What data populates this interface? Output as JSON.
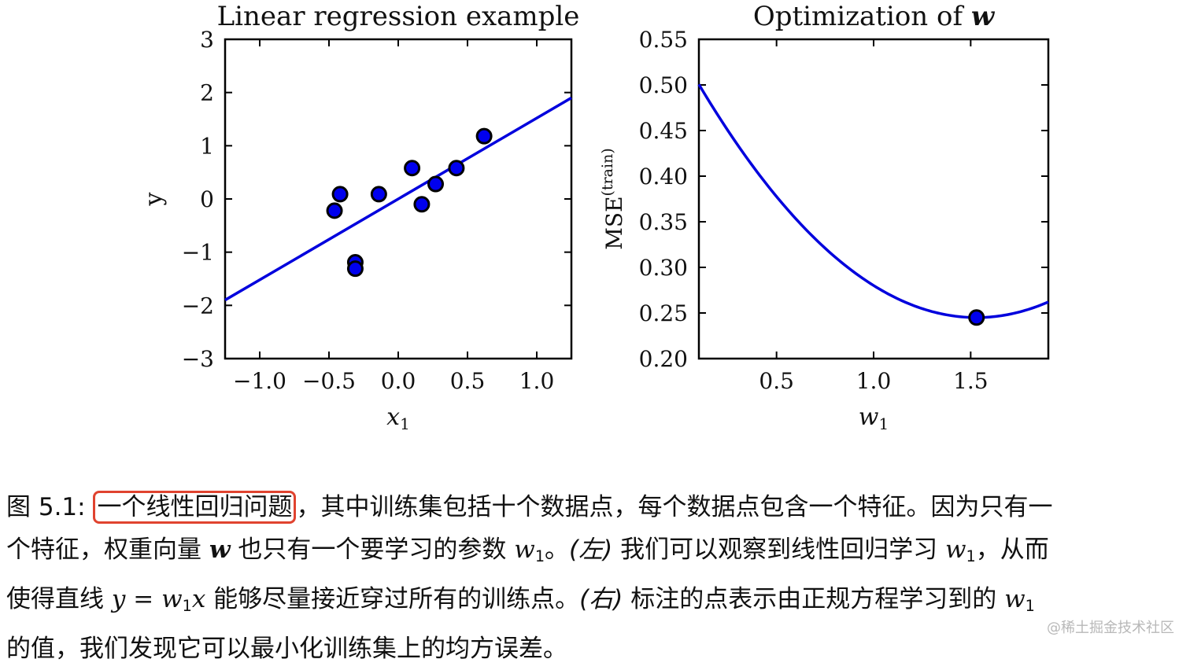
{
  "chart_data": [
    {
      "type": "scatter",
      "title": "Linear regression example",
      "xlabel": "x",
      "xlabel_sub": "1",
      "ylabel": "y",
      "xlim": [
        -1.25,
        1.25
      ],
      "ylim": [
        -3,
        3
      ],
      "xticks": [
        -1.0,
        -0.5,
        0.0,
        0.5,
        1.0
      ],
      "xtick_labels": [
        "−1.0",
        "−0.5",
        "0.0",
        "0.5",
        "1.0"
      ],
      "yticks": [
        -3,
        -2,
        -1,
        0,
        1,
        2,
        3
      ],
      "ytick_labels": [
        "−3",
        "−2",
        "−1",
        "0",
        "1",
        "2",
        "3"
      ],
      "points": [
        {
          "x": -0.46,
          "y": -0.22
        },
        {
          "x": -0.42,
          "y": 0.09
        },
        {
          "x": -0.31,
          "y": -1.19
        },
        {
          "x": -0.31,
          "y": -1.31
        },
        {
          "x": -0.14,
          "y": 0.09
        },
        {
          "x": 0.1,
          "y": 0.58
        },
        {
          "x": 0.17,
          "y": -0.1
        },
        {
          "x": 0.27,
          "y": 0.28
        },
        {
          "x": 0.42,
          "y": 0.58
        },
        {
          "x": 0.62,
          "y": 1.18
        }
      ],
      "fit_line": {
        "x": [
          -1.25,
          1.25
        ],
        "y": [
          -1.9,
          1.9
        ]
      },
      "point_color": "#0000ee",
      "line_color": "#0000dd"
    },
    {
      "type": "line",
      "title": "Optimization of ",
      "title_symbol": "w",
      "xlabel": "w",
      "xlabel_sub": "1",
      "ylabel": "MSE",
      "ylabel_sup": "(train)",
      "xlim": [
        0.1,
        1.9
      ],
      "ylim": [
        0.2,
        0.55
      ],
      "xticks": [
        0.5,
        1.0,
        1.5
      ],
      "xtick_labels": [
        "0.5",
        "1.0",
        "1.5"
      ],
      "yticks": [
        0.2,
        0.25,
        0.3,
        0.35,
        0.4,
        0.45,
        0.5,
        0.55
      ],
      "ytick_labels": [
        "0.20",
        "0.25",
        "0.30",
        "0.35",
        "0.40",
        "0.45",
        "0.50",
        "0.55"
      ],
      "curve": {
        "vertex_x": 1.53,
        "vertex_y": 0.245,
        "coefficient": 0.125
      },
      "marked_point": {
        "x": 1.53,
        "y": 0.245
      },
      "line_color": "#0000dd",
      "point_color": "#0000ee"
    }
  ],
  "caption": {
    "prefix": "图 5.1: ",
    "highlight": "一个线性回归问题",
    "line1_rest": "，其中训练集包括十个数据点，每个数据点包含一个特征。因为只有一",
    "line2_a": "个特征，权重向量 ",
    "line2_w": "w",
    "line2_b": " 也只有一个要学习的参数 ",
    "line2_w1": "w",
    "line2_w1_sub": "1",
    "line2_c": "。",
    "line2_left": "(左)",
    "line2_d": " 我们可以观察到线性回归学习 ",
    "line2_w1b": "w",
    "line2_w1b_sub": "1",
    "line2_e": "，从而",
    "line3_a": "使得直线 ",
    "line3_eq_y": "y",
    "line3_eq_mid": " = ",
    "line3_eq_w": "w",
    "line3_eq_sub": "1",
    "line3_eq_x": "x",
    "line3_b": " 能够尽量接近穿过所有的训练点。",
    "line3_right": "(右)",
    "line3_c": " 标注的点表示由正规方程学习到的 ",
    "line3_w1": "w",
    "line3_w1_sub": "1",
    "line4": "的值，我们发现它可以最小化训练集上的均方误差。"
  },
  "watermark": "@稀土掘金技术社区",
  "highlight_color": "#e0432f"
}
